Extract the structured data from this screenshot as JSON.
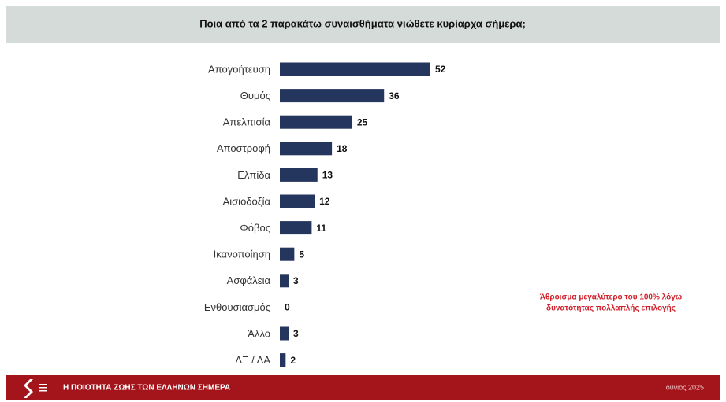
{
  "chart_data": {
    "type": "bar",
    "orientation": "horizontal",
    "title": "Ποια από τα 2 παρακάτω συναισθήματα νιώθετε κυρίαρχα σήμερα;",
    "categories": [
      "Απογοήτευση",
      "Θυμός",
      "Απελπισία",
      "Αποστροφή",
      "Ελπίδα",
      "Αισιοδοξία",
      "Φόβος",
      "Ικανοποίηση",
      "Ασφάλεια",
      "Ενθουσιασμός",
      "Άλλο",
      "ΔΞ / ΔΑ"
    ],
    "values": [
      52,
      36,
      25,
      18,
      13,
      12,
      11,
      5,
      3,
      0,
      3,
      2
    ],
    "color": "#24365e",
    "annotation": [
      "Άθροισμα μεγαλύτερο του 100% λόγω",
      "δυνατότητας πολλαπλής επιλογής"
    ],
    "footer": {
      "title": "Η ΠΟΙΟΤΗΤΑ ΖΩΗΣ ΤΩΝ ΕΛΛΗΝΩΝ ΣΗΜΕΡΑ",
      "date": "Ιούνιος 2025"
    }
  }
}
